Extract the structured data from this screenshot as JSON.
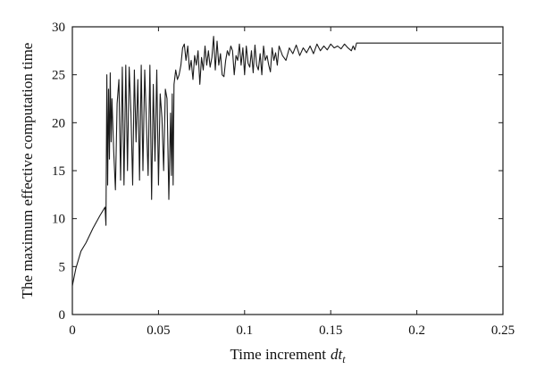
{
  "chart_data": {
    "type": "line",
    "xlabel": "Time increment",
    "xlabel_var": "dt",
    "xlabel_sub": "t",
    "ylabel": "The maximum effective computation time",
    "xlim": [
      0,
      0.25
    ],
    "ylim": [
      0,
      30
    ],
    "xticks": [
      0,
      0.05,
      0.1,
      0.15,
      0.2,
      0.25
    ],
    "xtick_labels": [
      "0",
      "0.05",
      "0.1",
      "0.15",
      "0.2",
      "0.25"
    ],
    "yticks": [
      0,
      5,
      10,
      15,
      20,
      25,
      30
    ],
    "ytick_labels": [
      "0",
      "5",
      "10",
      "15",
      "20",
      "25",
      "30"
    ],
    "grid": false,
    "legend": "none",
    "line_color": "#1a1a1a",
    "series": [
      {
        "x": [
          0.0,
          0.002,
          0.005,
          0.008,
          0.012,
          0.016,
          0.019,
          0.0195,
          0.02,
          0.0205,
          0.021,
          0.0215,
          0.022,
          0.0225,
          0.023,
          0.024,
          0.025,
          0.026,
          0.027,
          0.028,
          0.029,
          0.03,
          0.031,
          0.032,
          0.033,
          0.034,
          0.035,
          0.036,
          0.037,
          0.038,
          0.039,
          0.04,
          0.041,
          0.042,
          0.043,
          0.044,
          0.045,
          0.046,
          0.047,
          0.048,
          0.049,
          0.05,
          0.051,
          0.052,
          0.053,
          0.054,
          0.055,
          0.056,
          0.057,
          0.0575,
          0.058,
          0.0585,
          0.059,
          0.06,
          0.061,
          0.062,
          0.063,
          0.064,
          0.065,
          0.066,
          0.067,
          0.068,
          0.069,
          0.07,
          0.071,
          0.072,
          0.073,
          0.074,
          0.075,
          0.076,
          0.077,
          0.078,
          0.079,
          0.08,
          0.081,
          0.082,
          0.083,
          0.084,
          0.085,
          0.086,
          0.087,
          0.088,
          0.089,
          0.09,
          0.091,
          0.092,
          0.093,
          0.094,
          0.095,
          0.096,
          0.097,
          0.098,
          0.099,
          0.1,
          0.101,
          0.102,
          0.103,
          0.104,
          0.105,
          0.106,
          0.107,
          0.108,
          0.109,
          0.11,
          0.111,
          0.112,
          0.113,
          0.114,
          0.115,
          0.116,
          0.117,
          0.118,
          0.119,
          0.12,
          0.122,
          0.124,
          0.126,
          0.128,
          0.13,
          0.132,
          0.134,
          0.136,
          0.138,
          0.14,
          0.142,
          0.144,
          0.146,
          0.148,
          0.15,
          0.152,
          0.154,
          0.156,
          0.158,
          0.16,
          0.162,
          0.163,
          0.164,
          0.165,
          0.2,
          0.249
        ],
        "y": [
          3.0,
          4.8,
          6.6,
          7.5,
          9.0,
          10.3,
          11.2,
          9.3,
          25.0,
          13.5,
          23.5,
          16.2,
          25.2,
          18.0,
          22.5,
          17.0,
          13.0,
          22.0,
          24.5,
          14.0,
          25.8,
          13.5,
          26.0,
          15.0,
          25.8,
          21.0,
          13.5,
          25.5,
          18.0,
          24.5,
          14.0,
          26.0,
          15.0,
          25.5,
          20.0,
          14.5,
          26.0,
          12.0,
          24.0,
          16.0,
          25.5,
          13.5,
          23.0,
          20.5,
          15.0,
          23.5,
          22.5,
          12.0,
          21.0,
          14.5,
          23.0,
          13.5,
          24.0,
          25.5,
          24.5,
          25.0,
          26.0,
          27.8,
          28.2,
          26.5,
          28.0,
          25.5,
          26.5,
          24.5,
          27.0,
          26.0,
          27.5,
          24.0,
          26.8,
          25.5,
          28.0,
          26.0,
          27.5,
          25.8,
          26.8,
          29.0,
          25.5,
          28.5,
          26.0,
          27.2,
          25.0,
          24.8,
          26.5,
          27.5,
          27.0,
          28.0,
          27.5,
          25.0,
          27.0,
          26.5,
          28.2,
          26.0,
          27.8,
          25.0,
          28.0,
          26.2,
          25.8,
          27.5,
          25.2,
          28.1,
          26.0,
          25.5,
          27.2,
          25.0,
          28.0,
          26.5,
          27.0,
          26.0,
          25.3,
          27.8,
          26.5,
          27.3,
          26.0,
          28.0,
          27.0,
          26.5,
          27.8,
          27.2,
          28.1,
          27.0,
          27.8,
          27.3,
          28.0,
          27.2,
          28.2,
          27.5,
          28.0,
          27.6,
          28.2,
          27.8,
          28.0,
          27.7,
          28.2,
          27.8,
          27.5,
          28.0,
          27.6,
          28.3,
          28.3,
          28.3
        ]
      }
    ]
  }
}
